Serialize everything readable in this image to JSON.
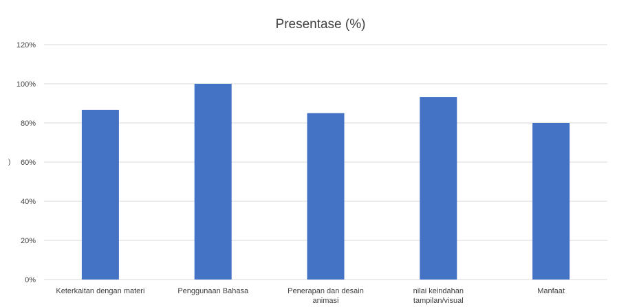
{
  "chart_data": {
    "type": "bar",
    "title": "Presentase (%)",
    "xlabel": "",
    "ylabel": "",
    "categories": [
      [
        "Keterkaitan dengan materi"
      ],
      [
        "Penggunaan Bahasa"
      ],
      [
        "Penerapan dan desain",
        "animasi"
      ],
      [
        "nilai keindahan",
        "tampilan/visual"
      ],
      [
        "Manfaat"
      ]
    ],
    "series": [
      {
        "values": [
          0.867,
          1.0,
          0.85,
          0.933,
          0.8
        ]
      }
    ],
    "ylim": [
      0,
      1.2
    ],
    "yticks": [
      0,
      0.2,
      0.4,
      0.6,
      0.8,
      1.0,
      1.2
    ],
    "ytick_labels": [
      "0%",
      "20%",
      "40%",
      "60%",
      "80%",
      "100%",
      "120%"
    ],
    "grid": true,
    "legend": "none",
    "colors": {
      "bar": "#4472C4",
      "grid": "#d9d9d9",
      "text": "#404040"
    }
  },
  "stray_marks": {
    "left_paren": ")"
  }
}
